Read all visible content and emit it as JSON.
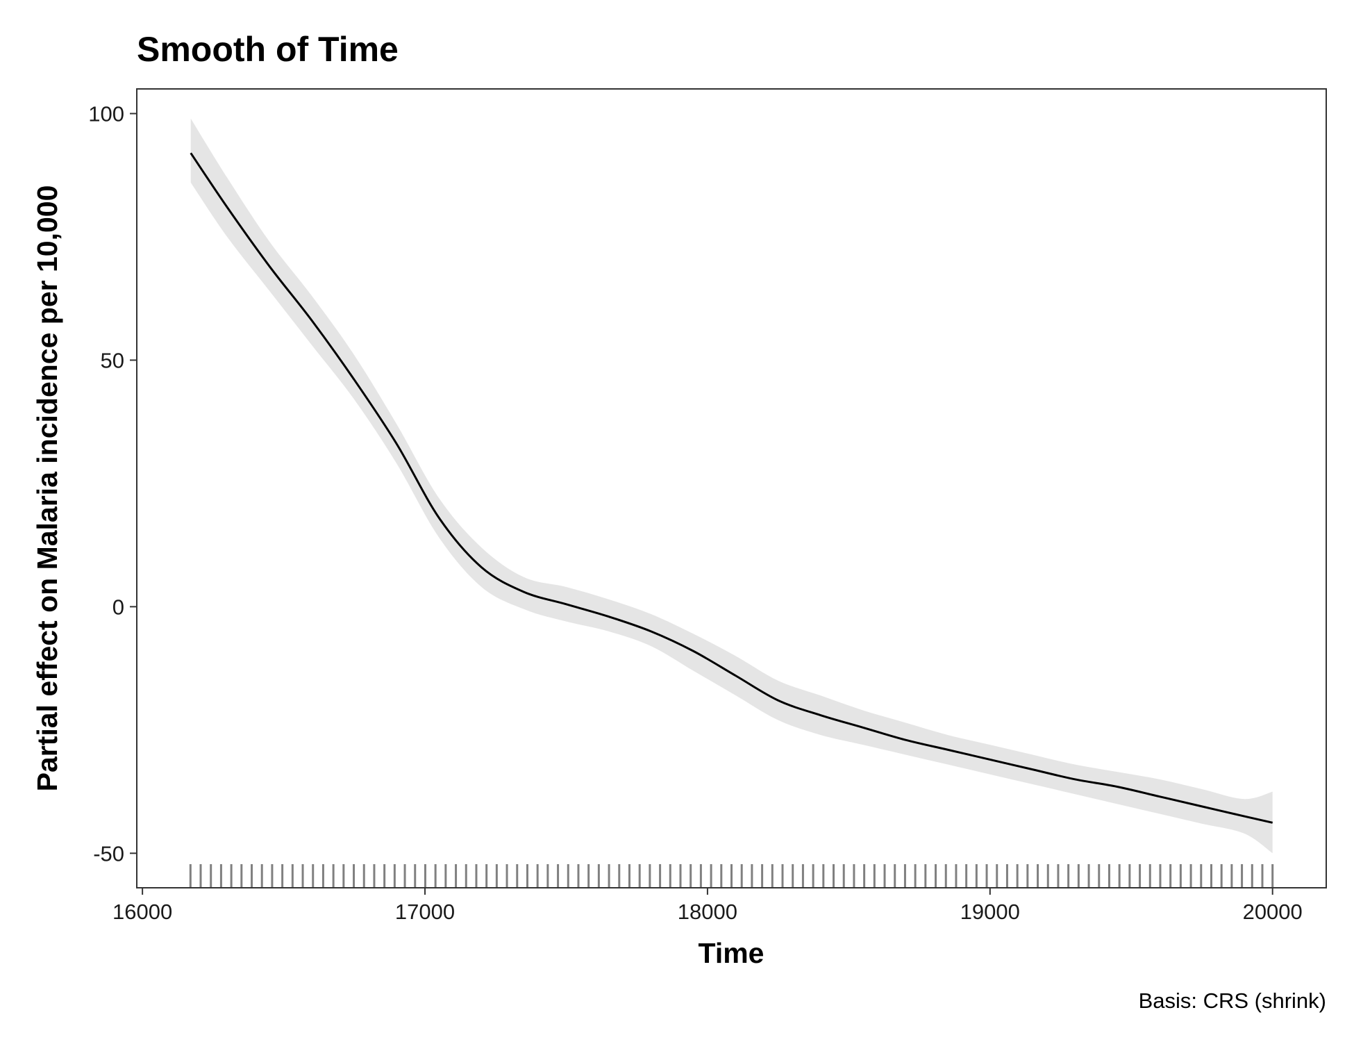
{
  "chart_data": {
    "type": "line",
    "title": "Smooth of Time",
    "xlabel": "Time",
    "ylabel": "Partial effect on Malaria incidence per 10,000",
    "caption": "Basis: CRS (shrink)",
    "xlim": [
      15980,
      20190
    ],
    "ylim": [
      -57,
      105
    ],
    "x_ticks": [
      16000,
      17000,
      18000,
      19000,
      20000
    ],
    "x_tick_labels": [
      "16000",
      "17000",
      "18000",
      "19000",
      "20000"
    ],
    "y_ticks": [
      -50,
      0,
      50,
      100
    ],
    "y_tick_labels": [
      "-50",
      "0",
      "50",
      "100"
    ],
    "grid": false,
    "colors": {
      "line": "#000000",
      "band": "#e5e5e5",
      "rug": "#808080",
      "frame": "#333333"
    },
    "series": [
      {
        "x": [
          16171,
          16300,
          16450,
          16600,
          16750,
          16900,
          17050,
          17200,
          17350,
          17500,
          17650,
          17800,
          17950,
          18100,
          18250,
          18400,
          18550,
          18700,
          18850,
          19000,
          19150,
          19300,
          19450,
          19600,
          19750,
          19900,
          20000
        ],
        "y": [
          92,
          81,
          69,
          58,
          46,
          33,
          18,
          8,
          3,
          0.5,
          -2,
          -5,
          -9,
          -14,
          -19,
          -22,
          -24.5,
          -27,
          -29,
          -31,
          -33,
          -35,
          -36.5,
          -38.5,
          -40.5,
          -42.5,
          -43.8
        ],
        "lower": [
          86,
          75,
          64,
          53,
          42,
          29,
          14,
          4,
          -0.5,
          -3,
          -5,
          -8,
          -13,
          -18,
          -23,
          -26,
          -28,
          -30,
          -32,
          -34,
          -36,
          -38,
          -40,
          -42,
          -44,
          -46,
          -50
        ],
        "upper": [
          99,
          87,
          74,
          63,
          51,
          37,
          22,
          12,
          6,
          4,
          1.5,
          -1.5,
          -5.5,
          -10,
          -15,
          -18,
          -21,
          -23.5,
          -26,
          -28,
          -30,
          -32,
          -33.5,
          -35,
          -37,
          -39,
          -37.5
        ]
      }
    ],
    "rug": {
      "from": 16170,
      "to": 20000,
      "count": 107
    }
  }
}
